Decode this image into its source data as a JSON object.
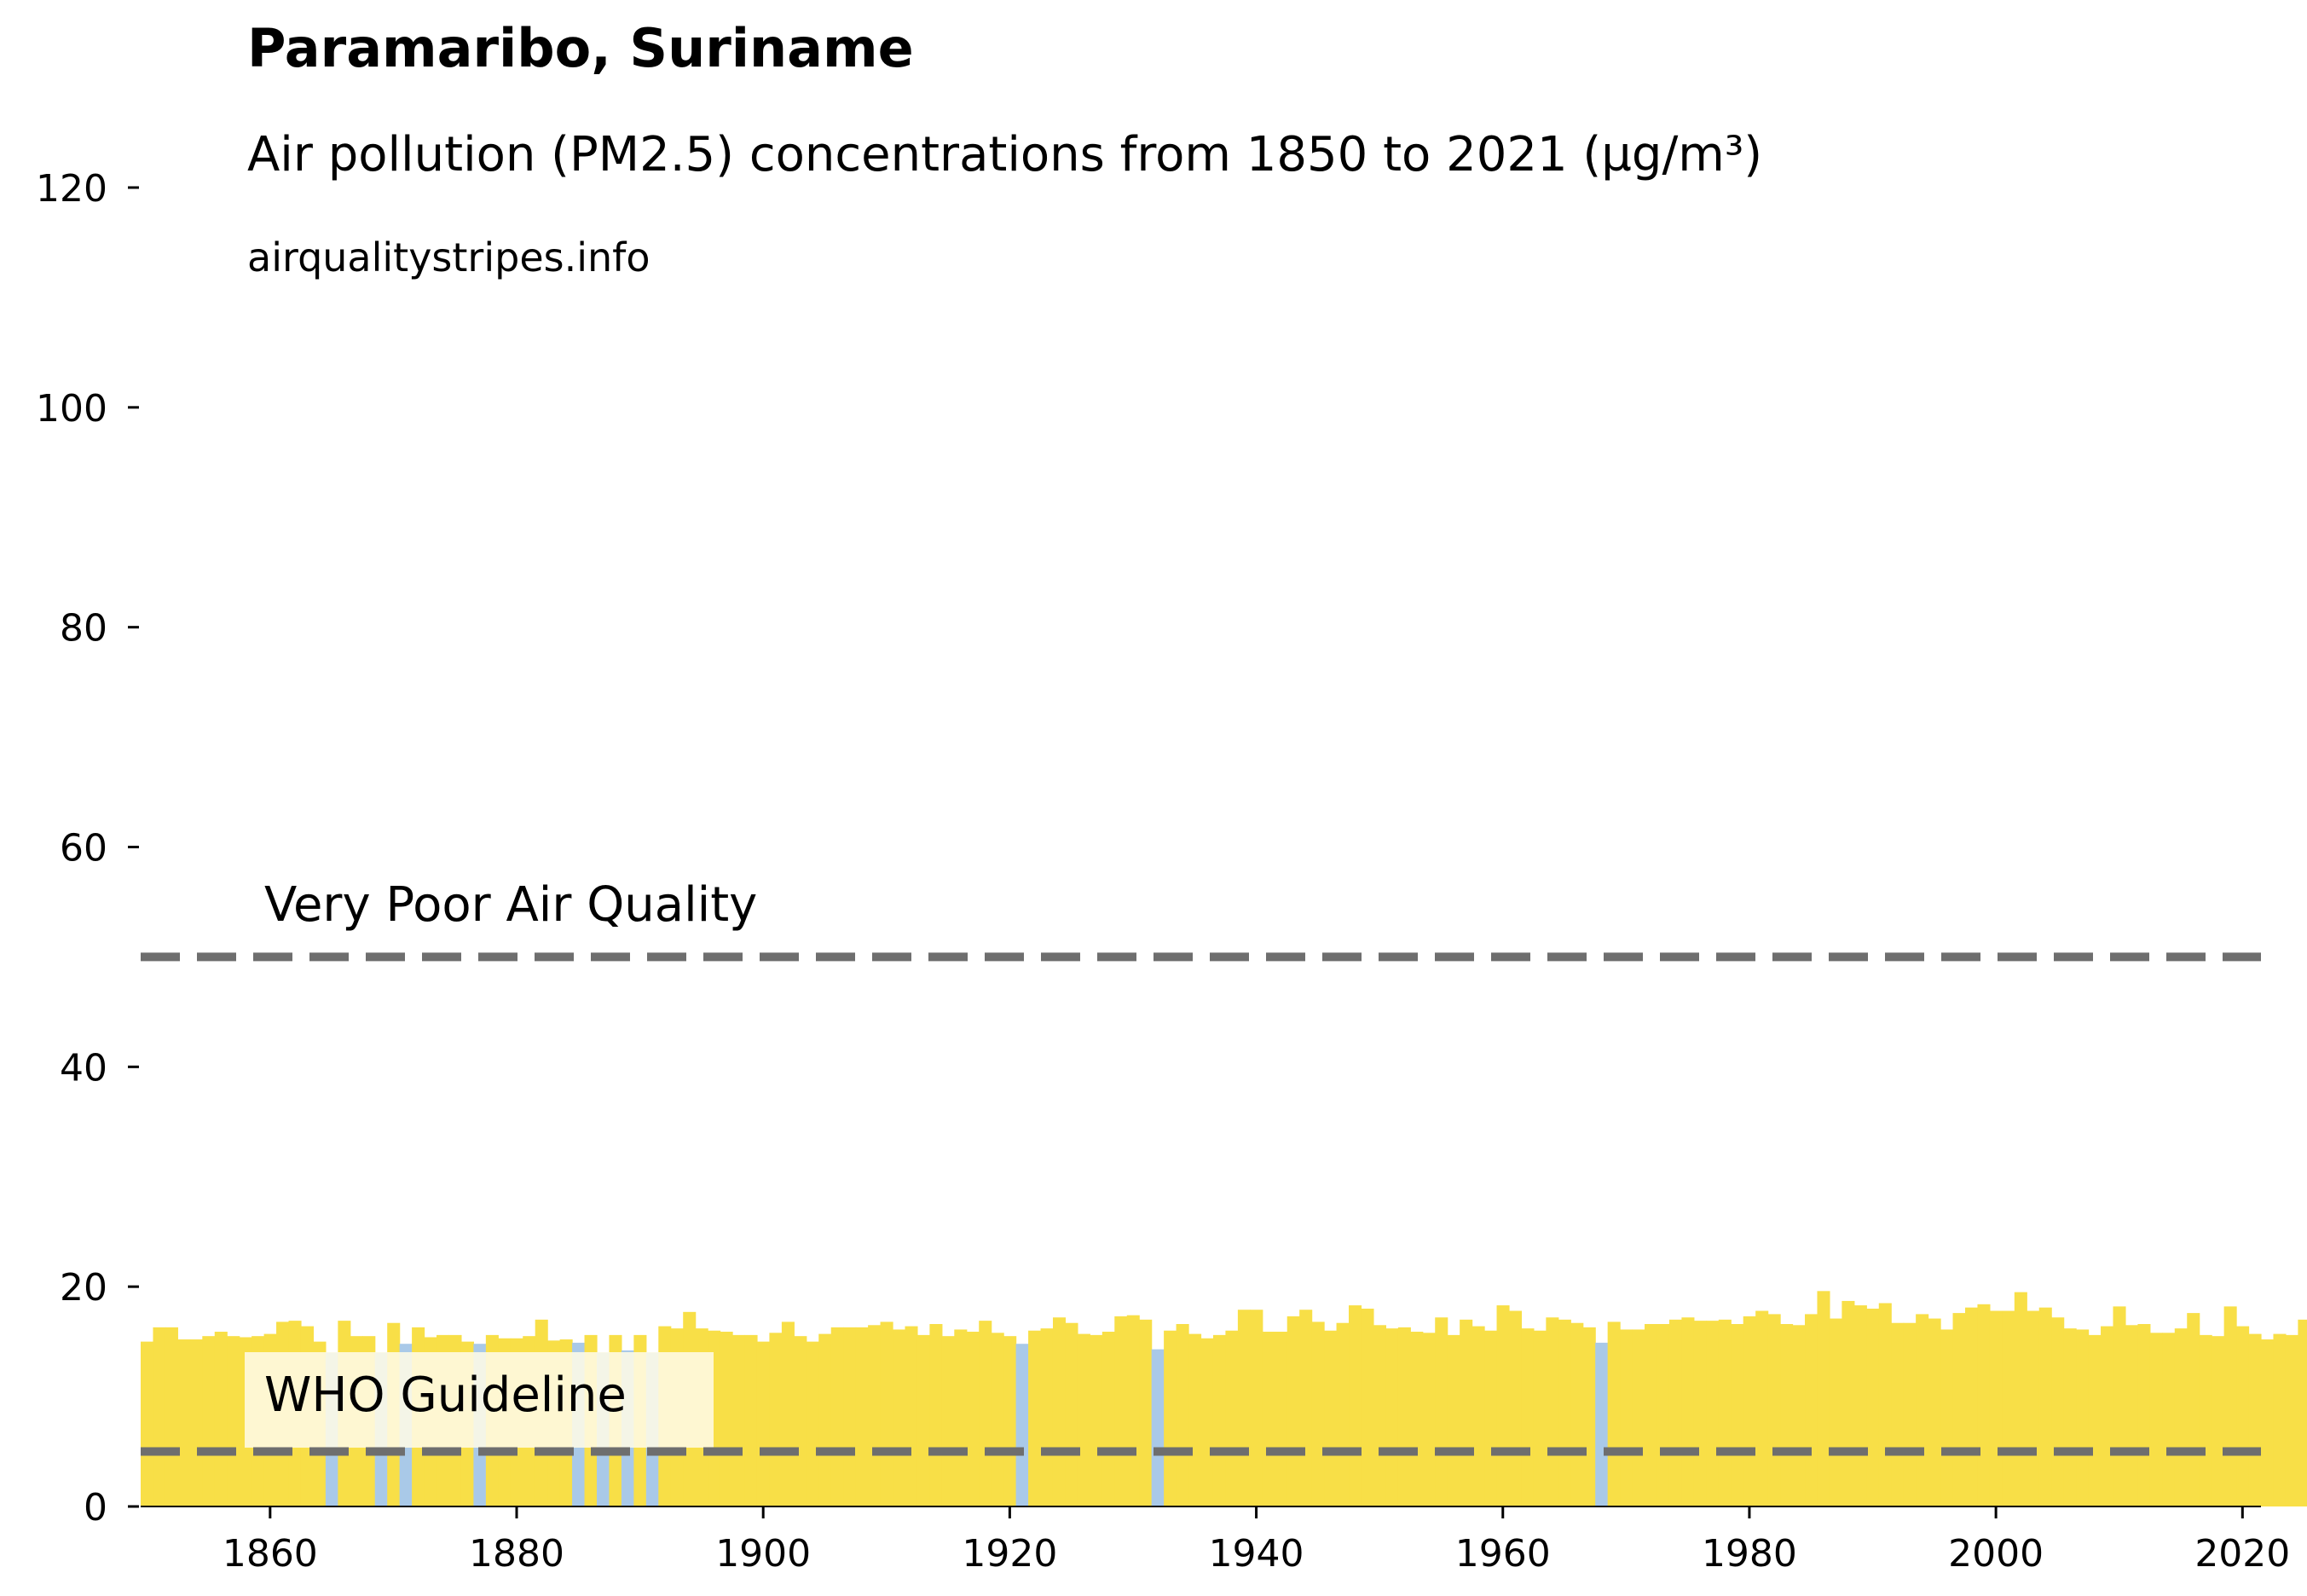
{
  "chart_data": {
    "type": "bar",
    "title": "Paramaribo, Suriname",
    "subtitle": "Air pollution (PM2.5) concentrations from 1850 to 2021 (µg/m³)",
    "source": "airqualitystripes.info",
    "x_start_year": 1850,
    "x_end_year": 2021,
    "xlim": [
      1849.5,
      2021.5
    ],
    "ylim": [
      0,
      120
    ],
    "x_ticks": [
      1860,
      1880,
      1900,
      1920,
      1940,
      1960,
      1980,
      2000,
      2020
    ],
    "y_ticks": [
      0,
      20,
      40,
      60,
      80,
      100,
      120
    ],
    "values": [
      15.0,
      16.3,
      16.3,
      15.2,
      15.2,
      15.5,
      15.9,
      15.5,
      15.4,
      15.5,
      15.7,
      16.8,
      16.9,
      16.4,
      15.0,
      14.0,
      16.9,
      15.5,
      15.5,
      14.0,
      16.7,
      14.8,
      16.3,
      15.4,
      15.6,
      15.6,
      15.0,
      14.8,
      15.6,
      15.3,
      15.3,
      15.5,
      17.0,
      15.1,
      15.2,
      14.9,
      15.6,
      14.0,
      15.6,
      14.2,
      15.6,
      14.0,
      16.4,
      16.2,
      17.7,
      16.2,
      16.0,
      15.9,
      15.6,
      15.6,
      15.0,
      15.8,
      16.8,
      15.5,
      15.0,
      15.7,
      16.3,
      16.3,
      16.3,
      16.5,
      16.8,
      16.1,
      16.4,
      15.6,
      16.6,
      15.5,
      16.1,
      15.9,
      16.9,
      15.8,
      15.5,
      14.8,
      16.0,
      16.2,
      17.2,
      16.7,
      15.7,
      15.6,
      15.9,
      17.3,
      17.4,
      17.0,
      14.3,
      16.0,
      16.6,
      15.7,
      15.3,
      15.6,
      16.0,
      17.9,
      17.9,
      15.9,
      15.9,
      17.3,
      17.9,
      16.8,
      16.0,
      16.7,
      18.3,
      18.0,
      16.5,
      16.2,
      16.3,
      15.9,
      15.8,
      17.2,
      15.6,
      17.0,
      16.4,
      16.0,
      18.3,
      17.8,
      16.2,
      16.0,
      17.2,
      17.0,
      16.7,
      16.3,
      14.9,
      16.8,
      16.1,
      16.1,
      16.6,
      16.6,
      17.0,
      17.2,
      16.9,
      16.9,
      17.0,
      16.6,
      17.3,
      17.8,
      17.5,
      16.6,
      16.5,
      17.5,
      19.6,
      17.1,
      18.7,
      18.3,
      18.0,
      18.5,
      16.7,
      16.7,
      17.5,
      17.1,
      16.1,
      17.6,
      18.1,
      18.4,
      17.8,
      17.8,
      19.5,
      17.8,
      18.1,
      17.2,
      16.2,
      16.1,
      15.6,
      16.4,
      18.2,
      16.5,
      16.6,
      15.8,
      15.8,
      16.2,
      17.6,
      15.6,
      15.5,
      18.2,
      16.4,
      15.7,
      15.2,
      15.7,
      15.6,
      17.0,
      15.8
    ],
    "thresholds": [
      {
        "label": "WHO Guideline",
        "value": 5
      },
      {
        "label": "Very Poor Air Quality",
        "value": 50
      }
    ],
    "colors": {
      "above_guideline_bar": "#f8df47",
      "below_threshold_bar": "#a9c9e8",
      "reference_line": "#6e6e6e",
      "axis": "#000000"
    },
    "low_bar_threshold": 15
  }
}
